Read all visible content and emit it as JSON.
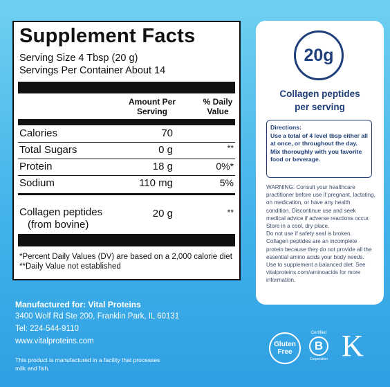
{
  "facts": {
    "title": "Supplement Facts",
    "serving_size": "Serving Size 4 Tbsp (20 g)",
    "servings": "Servings Per Container About 14",
    "header": {
      "amount_lines": [
        "Amount Per",
        "Serving"
      ],
      "dv_lines": [
        "% Daily",
        "Value"
      ]
    },
    "rows": [
      {
        "name": "Calories",
        "amount": "70",
        "dv": ""
      },
      {
        "name": "Total Sugars",
        "amount": "0 g",
        "dv": "**"
      },
      {
        "name": "Protein",
        "amount": "18 g",
        "dv": "0%*"
      },
      {
        "name": "Sodium",
        "amount": "110 mg",
        "dv": "5%"
      }
    ],
    "collagen": {
      "name_lines": [
        "Collagen peptides",
        "(from bovine)"
      ],
      "amount": "20 g",
      "dv": "**"
    },
    "footnotes": [
      "*Percent Daily Values (DV) are based on a 2,000 calorie diet",
      "**Daily Value not established"
    ]
  },
  "card": {
    "badge": "20g",
    "caption_lines": [
      "Collagen peptides",
      "per serving"
    ],
    "directions_title": "Directions:",
    "directions": "Use a total of 4 level tbsp either all at once, or throughout the day. Mix thoroughly with you favorite food or beverage.",
    "warning": [
      "WARNING: Consult your healthcare practitioner before use if pregnant, lactating, on medication, or have any health condition. Discontinue use and seek medical advice if adverse reactions occur.",
      "Store in a cool, dry place.",
      "Do not use if safety seal is broken.",
      "Collagen peptides are an incomplete protein because they do not provide all the essential amino acids your body needs. Use to supplement a balanced diet. See vitalproteins.com/aminoacids for more information."
    ]
  },
  "manufacturer": {
    "heading": "Manufactured for: Vital Proteins",
    "lines": [
      "3400 Wolf Rd Ste 200, Franklin Park, IL 60131",
      "Tel: 224-544-9110",
      "www.vitalproteins.com"
    ],
    "note_lines": [
      "This product is manufactured in a facility that processes",
      "milk and fish."
    ]
  },
  "logos": {
    "gluten_lines": [
      "Gluten",
      "Free"
    ],
    "bcorp_top": "Certified",
    "bcorp_letter": "B",
    "bcorp_bottom": "Corporation",
    "brand": "K"
  }
}
